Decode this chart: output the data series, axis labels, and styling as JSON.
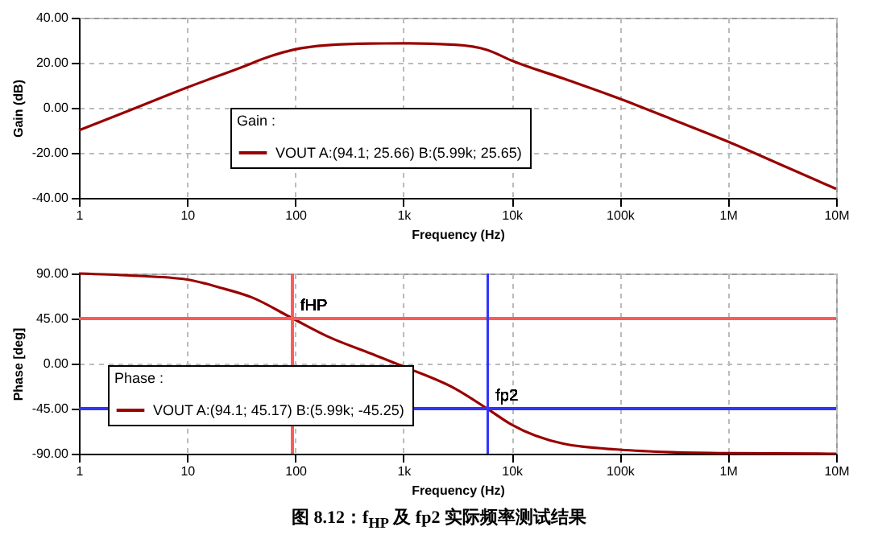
{
  "chart_data": [
    {
      "type": "line",
      "xlabel": "Frequency (Hz)",
      "ylabel": "Gain (dB)",
      "log": "x",
      "grid": true,
      "legend": "bottom",
      "legend_title": "Gain :",
      "xlim": [
        1,
        10000000
      ],
      "xticks": [
        1,
        10,
        100,
        {
          "value": 1000,
          "label": "1k"
        },
        {
          "value": 10000,
          "label": "10k"
        },
        {
          "value": 100000,
          "label": "100k"
        },
        {
          "value": 1000000,
          "label": "1M"
        },
        {
          "value": 10000000,
          "label": "10M"
        }
      ],
      "ylim": [
        -40,
        40
      ],
      "yticks": [
        {
          "value": -40,
          "label": "-40.00"
        },
        {
          "value": -20,
          "label": "-20.00"
        },
        {
          "value": 0,
          "label": "0.00"
        },
        {
          "value": 20,
          "label": "20.00"
        },
        {
          "value": 40,
          "label": "40.00"
        }
      ],
      "x": [
        1,
        3,
        10,
        30,
        60,
        94.1,
        200,
        500,
        1000,
        3000,
        5990,
        10000,
        30000,
        100000,
        300000,
        1000000,
        3000000,
        10000000
      ],
      "series": [
        {
          "name": "VOUT A:(94.1; 25.66) B:(5.99k; 25.65)",
          "color": "#990000",
          "values": [
            -10,
            -1,
            9,
            17.5,
            23,
            25.66,
            27.8,
            28.5,
            28.6,
            28,
            25.65,
            21,
            13,
            4,
            -5,
            -15,
            -25,
            -36
          ]
        }
      ]
    },
    {
      "type": "line",
      "xlabel": "Frequency (Hz)",
      "ylabel": "Phase [deg]",
      "log": "x",
      "grid": true,
      "legend": "bottom left",
      "legend_title": "Phase :",
      "xlim": [
        1,
        10000000
      ],
      "xticks": [
        1,
        10,
        100,
        {
          "value": 1000,
          "label": "1k"
        },
        {
          "value": 10000,
          "label": "10k"
        },
        {
          "value": 100000,
          "label": "100k"
        },
        {
          "value": 1000000,
          "label": "1M"
        },
        {
          "value": 10000000,
          "label": "10M"
        }
      ],
      "ylim": [
        -90,
        90
      ],
      "yticks": [
        {
          "value": -90,
          "label": "-90.00"
        },
        {
          "value": -45,
          "label": "-45.00"
        },
        {
          "value": 0,
          "label": "0.00"
        },
        {
          "value": 45,
          "label": "45.00"
        },
        {
          "value": 90,
          "label": "90.00"
        }
      ],
      "x": [
        1,
        3,
        10,
        20,
        40,
        94.1,
        200,
        500,
        1000,
        3000,
        5990,
        10000,
        30000,
        100000,
        300000,
        1000000,
        10000000
      ],
      "series": [
        {
          "name": "VOUT A:(94.1; 45.17) B:(5.99k; -45.25)",
          "color": "#990000",
          "values": [
            90,
            88,
            84,
            76,
            66,
            45.17,
            27,
            10,
            -3,
            -25,
            -45.25,
            -61,
            -80,
            -86,
            -88.5,
            -89.5,
            -90
          ]
        }
      ],
      "ref_lines": [
        {
          "axis": "y",
          "value": 45,
          "color": "#ff5a5a"
        },
        {
          "axis": "y",
          "value": -45,
          "color": "#3333ff"
        },
        {
          "axis": "x",
          "value": 94.1,
          "color": "#ff5a5a"
        },
        {
          "axis": "x",
          "value": 5990,
          "color": "#3333ff"
        }
      ],
      "annotations": [
        {
          "text": "fHP",
          "x": 94.1,
          "y": 45.17
        },
        {
          "text": "fp2",
          "x": 5990,
          "y": -45.25
        },
        "图 8.12：f$_{HP}$ 及 fp2 实际频率测试结果"
      ]
    }
  ]
}
